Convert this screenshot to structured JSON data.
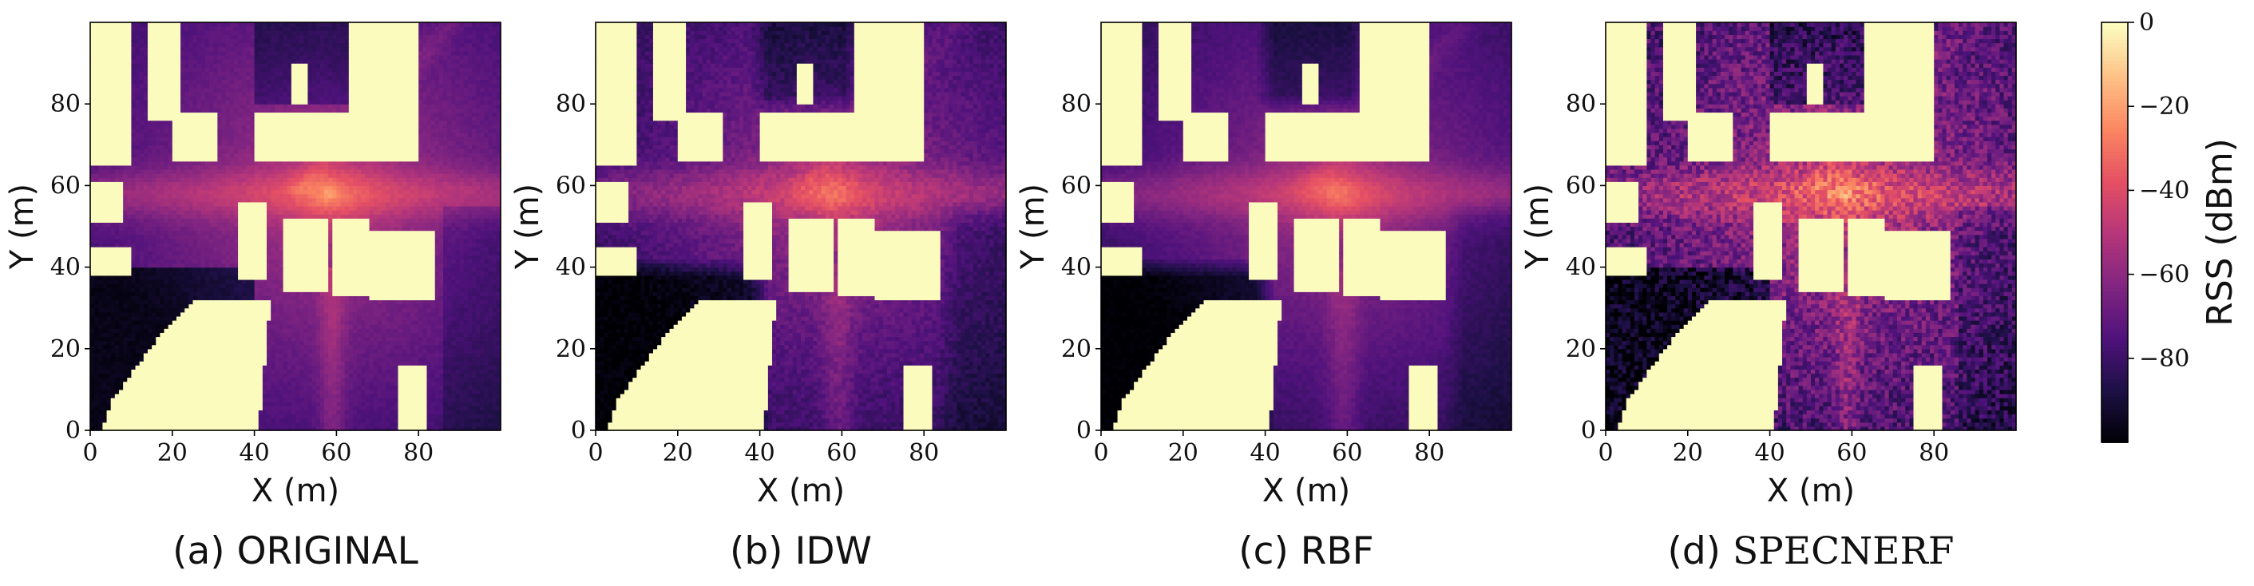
{
  "chart_data": [
    {
      "type": "heatmap",
      "caption_prefix": "(a)",
      "caption_name": "ORIGINAL",
      "caption_smallcaps": false,
      "xlabel": "X (m)",
      "ylabel": "Y (m)",
      "xlim": [
        0,
        100
      ],
      "ylim": [
        0,
        100
      ],
      "xticks": [
        0,
        20,
        40,
        60,
        80
      ],
      "yticks": [
        0,
        20,
        40,
        60,
        80
      ],
      "colorscale": "magma",
      "noise": 0.02,
      "blur": 0.0
    },
    {
      "type": "heatmap",
      "caption_prefix": "(b)",
      "caption_name": "IDW",
      "caption_smallcaps": false,
      "xlabel": "X (m)",
      "ylabel": "Y (m)",
      "xlim": [
        0,
        100
      ],
      "ylim": [
        0,
        100
      ],
      "xticks": [
        0,
        20,
        40,
        60,
        80
      ],
      "yticks": [
        0,
        20,
        40,
        60,
        80
      ],
      "colorscale": "magma",
      "noise": 0.04,
      "blur": 1.0
    },
    {
      "type": "heatmap",
      "caption_prefix": "(c)",
      "caption_name": "RBF",
      "caption_smallcaps": false,
      "xlabel": "X (m)",
      "ylabel": "Y (m)",
      "xlim": [
        0,
        100
      ],
      "ylim": [
        0,
        100
      ],
      "xticks": [
        0,
        20,
        40,
        60,
        80
      ],
      "yticks": [
        0,
        20,
        40,
        60,
        80
      ],
      "colorscale": "magma",
      "noise": 0.02,
      "blur": 1.0
    },
    {
      "type": "heatmap",
      "caption_prefix": "(d)",
      "caption_name": "SpecNeRF",
      "caption_smallcaps": true,
      "xlabel": "X (m)",
      "ylabel": "Y (m)",
      "xlim": [
        0,
        100
      ],
      "ylim": [
        0,
        100
      ],
      "xticks": [
        0,
        20,
        40,
        60,
        80
      ],
      "yticks": [
        0,
        20,
        40,
        60,
        80
      ],
      "colorscale": "magma",
      "noise": 0.12,
      "blur": 0.0
    }
  ],
  "colorbar": {
    "label": "RSS (dBm)",
    "range": [
      -100,
      0
    ],
    "ticks": [
      0,
      -20,
      -40,
      -60,
      -80
    ],
    "tick_labels": [
      "0",
      "−20",
      "−40",
      "−60",
      "−80"
    ]
  },
  "colors": {
    "magma": [
      "#000004",
      "#1c1044",
      "#4f127b",
      "#812581",
      "#b5367a",
      "#e55064",
      "#fb8761",
      "#fec287",
      "#fcfdbf"
    ],
    "building": "#fbfbbe"
  }
}
